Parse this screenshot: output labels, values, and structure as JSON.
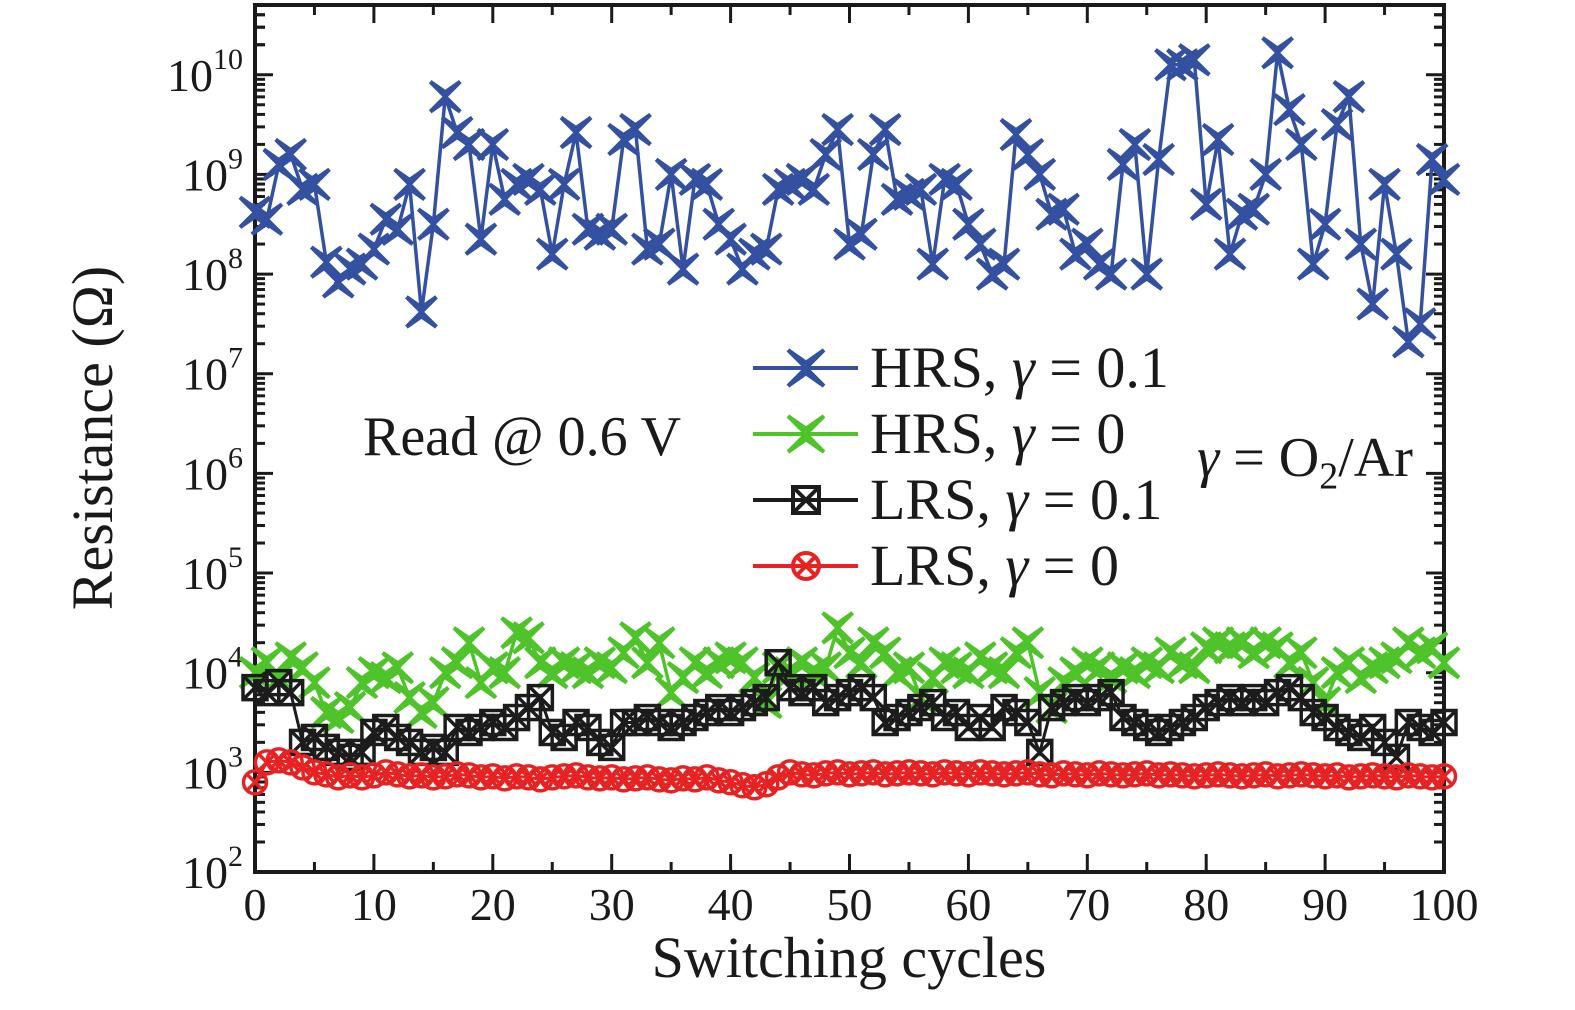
{
  "chart_data": {
    "type": "line",
    "title": "",
    "xlabel": "Switching cycles",
    "ylabel": "Resistance (Ω)",
    "unit": "ohm",
    "y_scale": "log",
    "ylim_log10": [
      2,
      10.7
    ],
    "x_range": [
      0,
      100
    ],
    "x_major_ticks": [
      0,
      10,
      20,
      30,
      40,
      50,
      60,
      70,
      80,
      90,
      100
    ],
    "x_minor_tick_step": 5,
    "y_tick_exponents": [
      2,
      3,
      4,
      5,
      6,
      7,
      8,
      9,
      10
    ],
    "grid": false,
    "legend_position": "center",
    "annotations": [
      {
        "text": "Read @ 0.6 V",
        "parts": [
          {
            "t": "Read @ 0.6 V"
          }
        ]
      },
      {
        "text": "γ = O₂/Ar",
        "parts": [
          {
            "t": "γ",
            "i": 1
          },
          {
            "t": " = O"
          },
          {
            "t": "2",
            "sub": 1
          },
          {
            "t": "/Ar"
          }
        ]
      }
    ],
    "x": [
      0,
      1,
      2,
      3,
      4,
      5,
      6,
      7,
      8,
      9,
      10,
      11,
      12,
      13,
      14,
      15,
      16,
      17,
      18,
      19,
      20,
      21,
      22,
      23,
      24,
      25,
      26,
      27,
      28,
      29,
      30,
      31,
      32,
      33,
      34,
      35,
      36,
      37,
      38,
      39,
      40,
      41,
      42,
      43,
      44,
      45,
      46,
      47,
      48,
      49,
      50,
      51,
      52,
      53,
      54,
      55,
      56,
      57,
      58,
      59,
      60,
      61,
      62,
      63,
      64,
      65,
      66,
      67,
      68,
      69,
      70,
      71,
      72,
      73,
      74,
      75,
      76,
      77,
      78,
      79,
      80,
      81,
      82,
      83,
      84,
      85,
      86,
      87,
      88,
      89,
      90,
      91,
      92,
      93,
      94,
      95,
      96,
      97,
      98,
      99,
      100
    ],
    "series": [
      {
        "name": "HRS, γ = 0.1",
        "name_parts": [
          {
            "t": "HRS, "
          },
          {
            "t": "γ",
            "i": 1
          },
          {
            "t": " = 0.1"
          }
        ],
        "color": "#3351a0",
        "marker": "star-x",
        "log10_values": [
          8.62,
          8.55,
          9.1,
          9.2,
          8.85,
          8.9,
          8.12,
          7.92,
          8.05,
          8.1,
          8.25,
          8.55,
          8.45,
          8.9,
          7.62,
          8.5,
          9.78,
          9.42,
          9.3,
          8.35,
          9.3,
          8.75,
          8.9,
          8.95,
          8.85,
          8.2,
          8.9,
          9.42,
          8.45,
          8.4,
          8.45,
          9.35,
          9.45,
          8.25,
          8.3,
          9.0,
          8.05,
          8.95,
          8.9,
          8.5,
          8.35,
          8.05,
          8.2,
          8.25,
          8.85,
          8.9,
          8.95,
          8.85,
          9.2,
          9.45,
          8.3,
          8.4,
          9.2,
          9.45,
          8.75,
          8.8,
          8.85,
          8.1,
          8.95,
          8.9,
          8.5,
          8.3,
          8.0,
          8.1,
          9.4,
          9.2,
          9.0,
          8.6,
          8.65,
          8.2,
          8.3,
          8.1,
          8.0,
          9.1,
          9.3,
          8.0,
          9.15,
          10.1,
          10.1,
          10.15,
          8.7,
          9.35,
          8.2,
          8.6,
          8.65,
          9.0,
          10.22,
          9.65,
          9.3,
          8.1,
          8.5,
          9.5,
          9.78,
          8.3,
          7.7,
          8.9,
          8.2,
          7.32,
          7.5,
          9.15,
          8.95
        ]
      },
      {
        "name": "HRS, γ = 0",
        "name_parts": [
          {
            "t": "HRS, "
          },
          {
            "t": "γ",
            "i": 1
          },
          {
            "t": " = 0"
          }
        ],
        "color": "#4fc32a",
        "marker": "star-x",
        "log10_values": [
          4.0,
          4.1,
          3.95,
          4.15,
          4.05,
          3.9,
          3.6,
          3.55,
          3.65,
          3.9,
          4.0,
          3.95,
          4.05,
          3.75,
          3.6,
          3.7,
          4.0,
          4.1,
          4.3,
          3.9,
          4.05,
          4.0,
          4.4,
          4.35,
          4.1,
          4.0,
          4.1,
          4.05,
          4.0,
          4.1,
          4.05,
          4.2,
          4.35,
          4.1,
          4.3,
          3.8,
          3.95,
          4.1,
          4.0,
          4.1,
          4.15,
          4.1,
          3.95,
          3.7,
          4.05,
          4.0,
          4.1,
          4.0,
          4.05,
          4.45,
          4.2,
          4.1,
          4.3,
          4.2,
          4.0,
          4.05,
          3.75,
          3.95,
          4.1,
          4.05,
          4.0,
          4.15,
          4.05,
          4.0,
          4.2,
          4.3,
          3.8,
          3.65,
          3.9,
          4.0,
          4.1,
          4.05,
          3.95,
          4.05,
          4.0,
          4.1,
          4.05,
          4.2,
          4.1,
          4.05,
          4.25,
          4.3,
          4.25,
          4.3,
          4.2,
          4.3,
          4.25,
          4.1,
          4.2,
          3.9,
          3.7,
          4.0,
          4.1,
          3.95,
          4.05,
          4.1,
          4.15,
          4.3,
          4.2,
          4.25,
          4.1
        ]
      },
      {
        "name": "LRS, γ = 0.1",
        "name_parts": [
          {
            "t": "LRS, "
          },
          {
            "t": "γ",
            "i": 1
          },
          {
            "t": " = 0.1"
          }
        ],
        "color": "#1c1c1c",
        "marker": "x-square",
        "log10_values": [
          3.85,
          3.8,
          3.9,
          3.8,
          3.3,
          3.35,
          3.25,
          3.2,
          3.15,
          3.2,
          3.4,
          3.45,
          3.35,
          3.3,
          3.2,
          3.25,
          3.2,
          3.45,
          3.4,
          3.45,
          3.5,
          3.45,
          3.55,
          3.65,
          3.75,
          3.4,
          3.35,
          3.5,
          3.45,
          3.3,
          3.25,
          3.5,
          3.5,
          3.55,
          3.5,
          3.45,
          3.5,
          3.55,
          3.6,
          3.65,
          3.6,
          3.65,
          3.7,
          3.75,
          4.1,
          3.85,
          3.8,
          3.85,
          3.7,
          3.75,
          3.8,
          3.85,
          3.75,
          3.5,
          3.55,
          3.6,
          3.65,
          3.7,
          3.55,
          3.6,
          3.45,
          3.55,
          3.45,
          3.65,
          3.6,
          3.5,
          3.2,
          3.65,
          3.7,
          3.75,
          3.7,
          3.75,
          3.8,
          3.55,
          3.5,
          3.45,
          3.4,
          3.45,
          3.5,
          3.55,
          3.65,
          3.7,
          3.75,
          3.7,
          3.75,
          3.7,
          3.8,
          3.85,
          3.75,
          3.6,
          3.55,
          3.45,
          3.4,
          3.35,
          3.45,
          3.3,
          3.15,
          3.5,
          3.45,
          3.4,
          3.5
        ]
      },
      {
        "name": "LRS, γ = 0",
        "name_parts": [
          {
            "t": "LRS, "
          },
          {
            "t": "γ",
            "i": 1
          },
          {
            "t": " = 0"
          }
        ],
        "color": "#e62322",
        "marker": "x-circle",
        "log10_values": [
          2.9,
          3.1,
          3.12,
          3.1,
          3.05,
          3.0,
          2.98,
          2.95,
          2.97,
          2.95,
          2.97,
          3.0,
          2.98,
          2.96,
          2.97,
          2.95,
          2.96,
          2.98,
          2.97,
          2.95,
          2.96,
          2.94,
          2.96,
          2.95,
          2.93,
          2.95,
          2.96,
          2.97,
          2.95,
          2.94,
          2.95,
          2.93,
          2.94,
          2.95,
          2.93,
          2.92,
          2.94,
          2.93,
          2.95,
          2.92,
          2.9,
          2.87,
          2.85,
          2.88,
          2.95,
          3.0,
          2.98,
          2.97,
          2.99,
          3.0,
          2.98,
          2.99,
          3.0,
          2.98,
          2.99,
          3.0,
          2.99,
          2.98,
          3.0,
          2.99,
          2.98,
          3.0,
          2.99,
          2.98,
          2.99,
          3.0,
          2.98,
          2.97,
          2.99,
          2.98,
          2.97,
          2.99,
          2.98,
          2.97,
          2.98,
          2.99,
          2.97,
          2.98,
          2.97,
          2.96,
          2.97,
          2.98,
          2.97,
          2.96,
          2.97,
          2.98,
          2.96,
          2.97,
          2.98,
          2.97,
          2.96,
          2.97,
          2.95,
          2.96,
          2.97,
          2.96,
          2.95,
          2.97,
          2.96,
          2.95,
          2.96
        ]
      }
    ]
  }
}
